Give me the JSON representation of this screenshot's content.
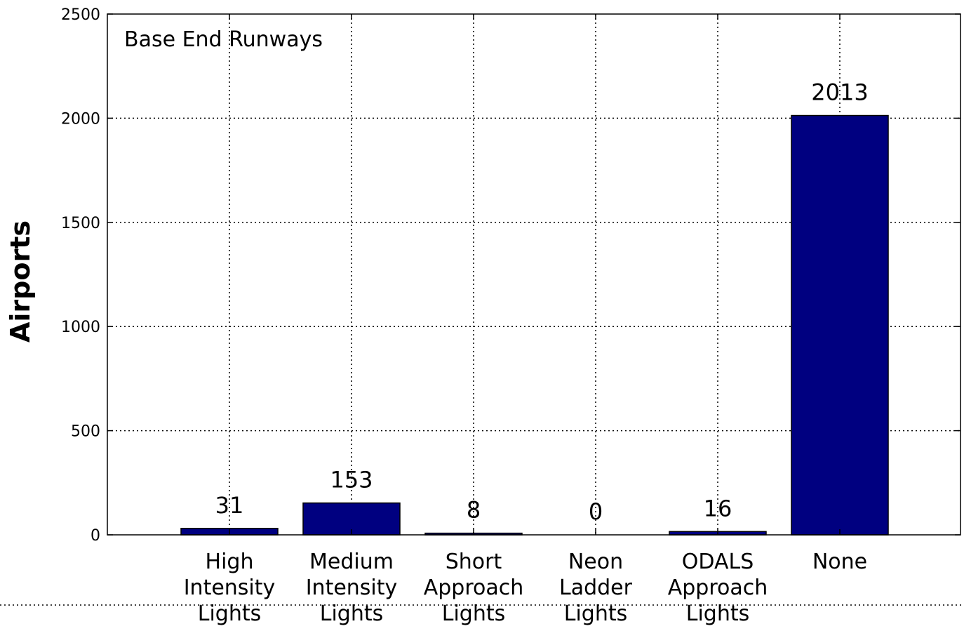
{
  "chart_data": {
    "type": "bar",
    "categories": [
      "High Intensity Lights",
      "Medium Intensity Lights",
      "Short Approach Lights",
      "Neon Ladder Lights",
      "ODALS Approach Lights",
      "None"
    ],
    "category_lines": [
      [
        "High",
        "Intensity",
        "Lights"
      ],
      [
        "Medium",
        "Intensity",
        "Lights"
      ],
      [
        "Short",
        "Approach",
        "Lights"
      ],
      [
        "Neon",
        "Ladder",
        "Lights"
      ],
      [
        "ODALS",
        "Approach",
        "Lights"
      ],
      [
        "None"
      ]
    ],
    "values": [
      31,
      153,
      8,
      0,
      16,
      2013
    ],
    "value_labels": [
      "31",
      "153",
      "8",
      "0",
      "16",
      "2013"
    ],
    "title": "",
    "annotation": "Base End Runways",
    "xlabel": "",
    "ylabel": "Airports",
    "ylim": [
      0,
      2500
    ],
    "yticks": [
      0,
      500,
      1000,
      1500,
      2000,
      2500
    ],
    "grid": true,
    "colors": {
      "bar": "#000080",
      "bar_edge": "#000000",
      "grid": "#000000"
    }
  }
}
